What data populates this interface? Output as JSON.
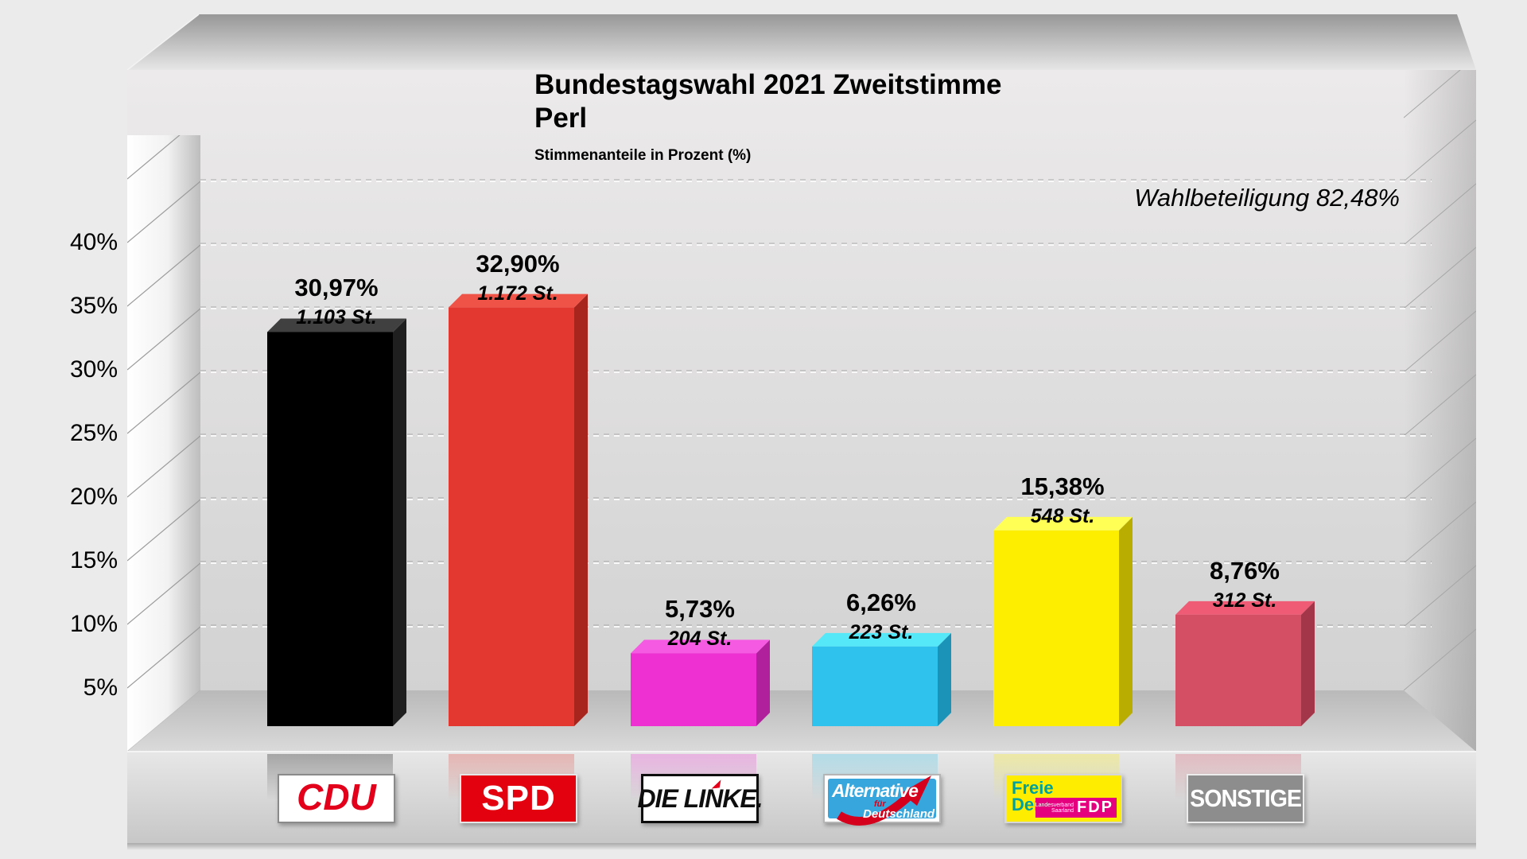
{
  "header": {
    "title_line1": "Bundestagswahl 2021 Zweitstimme",
    "title_line2": "Perl",
    "subtitle": "Stimmenanteile in Prozent (%)",
    "turnout_label": "Wahlbeteiligung 82,48%"
  },
  "chart_data": {
    "type": "bar",
    "title": "Bundestagswahl 2021 Zweitstimme Perl",
    "subtitle": "Stimmenanteile in Prozent (%)",
    "turnout_percent": 82.48,
    "grid": true,
    "ylim": [
      0,
      45
    ],
    "y_ticks": [
      {
        "label": "5%",
        "value": 5
      },
      {
        "label": "10%",
        "value": 10
      },
      {
        "label": "15%",
        "value": 15
      },
      {
        "label": "20%",
        "value": 20
      },
      {
        "label": "25%",
        "value": 25
      },
      {
        "label": "30%",
        "value": 30
      },
      {
        "label": "35%",
        "value": 35
      },
      {
        "label": "40%",
        "value": 40
      }
    ],
    "categories": [
      "CDU",
      "SPD",
      "DIE LINKE",
      "AfD",
      "FDP",
      "SONSTIGE"
    ],
    "parties": [
      {
        "name": "CDU",
        "percent": 30.97,
        "percent_label": "30,97%",
        "votes": 1103,
        "votes_label": "1.103 St.",
        "colors": {
          "front": "#000000",
          "top": "#404040",
          "side": "#1f1f1f"
        },
        "logo": {
          "text": "CDU",
          "bg": "#ffffff",
          "fg": "#e2001a"
        }
      },
      {
        "name": "SPD",
        "percent": 32.9,
        "percent_label": "32,90%",
        "votes": 1172,
        "votes_label": "1.172 St.",
        "colors": {
          "front": "#e2382f",
          "top": "#ef5348",
          "side": "#a8251e"
        },
        "logo": {
          "text": "SPD",
          "bg": "#e3000f",
          "fg": "#ffffff"
        }
      },
      {
        "name": "DIE LINKE",
        "percent": 5.73,
        "percent_label": "5,73%",
        "votes": 204,
        "votes_label": "204 St.",
        "colors": {
          "front": "#ee30d2",
          "top": "#f55ae2",
          "side": "#b01f9c"
        },
        "logo": {
          "text": "DIE LINKE.",
          "bg": "#ffffff",
          "fg": "#0e0e0e"
        }
      },
      {
        "name": "AfD",
        "percent": 6.26,
        "percent_label": "6,26%",
        "votes": 223,
        "votes_label": "223 St.",
        "colors": {
          "front": "#2fc2ec",
          "top": "#55e8f8",
          "side": "#1b93b8"
        },
        "logo": {
          "line1": "Alternative",
          "line2": "für",
          "line3": "Deutschland",
          "bg": "#36a6dc",
          "accent": "#d5001c"
        }
      },
      {
        "name": "FDP",
        "percent": 15.38,
        "percent_label": "15,38%",
        "votes": 548,
        "votes_label": "548 St.",
        "colors": {
          "front": "#fdee00",
          "top": "#ffff55",
          "side": "#b8ad00"
        },
        "logo": {
          "line1": "Freie",
          "line2": "Demokraten",
          "small": "Landesverband Saarland",
          "fdp": "FDP",
          "bg": "#ffed00",
          "fg": "#00a19a",
          "box": "#e5007d"
        }
      },
      {
        "name": "SONSTIGE",
        "percent": 8.76,
        "percent_label": "8,76%",
        "votes": 312,
        "votes_label": "312 St.",
        "colors": {
          "front": "#d44f63",
          "top": "#ef5a74",
          "side": "#a33648"
        },
        "logo": {
          "text": "SONSTIGE",
          "bg": "#8d8d8d",
          "fg": "#ffffff"
        }
      }
    ]
  }
}
